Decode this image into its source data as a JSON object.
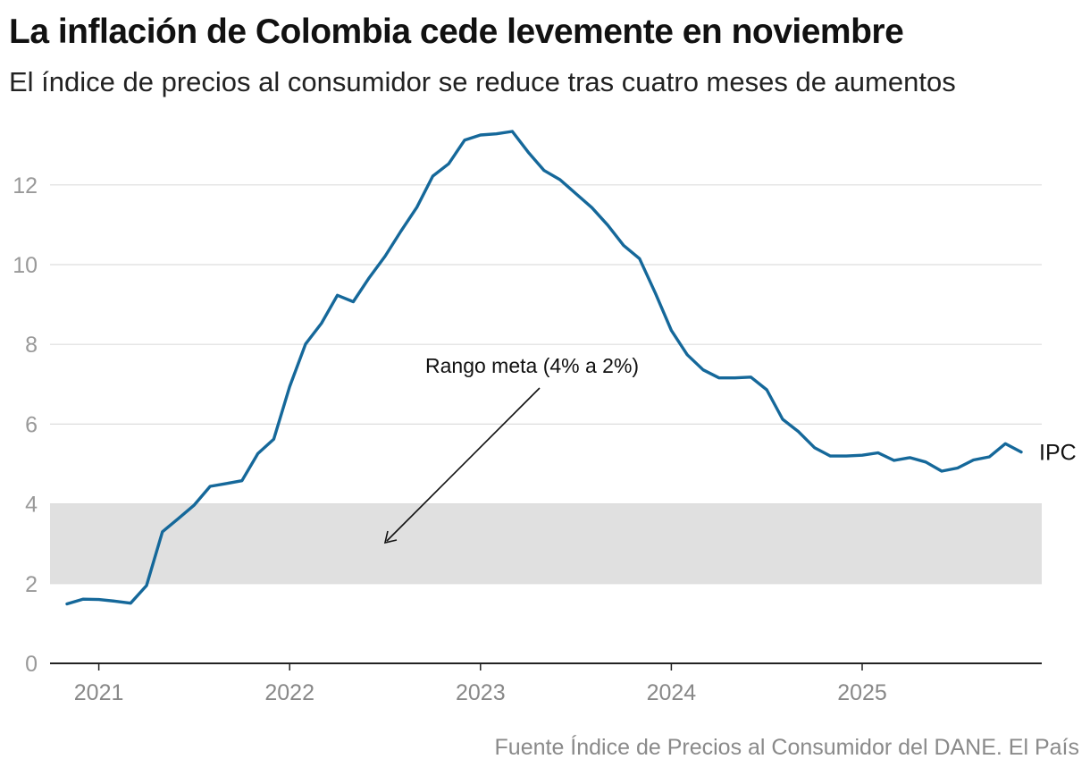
{
  "title": "La inflación de Colombia cede levemente en noviembre",
  "subtitle": "El índice de precios al consumidor se reduce tras cuatro meses de aumentos",
  "source": "Fuente Índice de Precios al Consumidor del DANE. El País",
  "colors": {
    "line": "#15689a",
    "band": "#e0e0e0",
    "grid": "#dddddd",
    "axis": "#222222"
  },
  "chart_data": {
    "type": "line",
    "title": "La inflación de Colombia cede levemente en noviembre",
    "xlabel": "",
    "ylabel": "",
    "ylim": [
      0,
      14
    ],
    "yticks": [
      0,
      2,
      4,
      6,
      8,
      10,
      12
    ],
    "xticks": [
      "2021",
      "2022",
      "2023",
      "2024",
      "2025"
    ],
    "grid": true,
    "band": {
      "label": "Rango meta (4% a 2%)",
      "from": 2,
      "to": 4
    },
    "series": [
      {
        "name": "IPC",
        "x": [
          "2020-11",
          "2020-12",
          "2021-01",
          "2021-02",
          "2021-03",
          "2021-04",
          "2021-05",
          "2021-06",
          "2021-07",
          "2021-08",
          "2021-09",
          "2021-10",
          "2021-11",
          "2021-12",
          "2022-01",
          "2022-02",
          "2022-03",
          "2022-04",
          "2022-05",
          "2022-06",
          "2022-07",
          "2022-08",
          "2022-09",
          "2022-10",
          "2022-11",
          "2022-12",
          "2023-01",
          "2023-02",
          "2023-03",
          "2023-04",
          "2023-05",
          "2023-06",
          "2023-07",
          "2023-08",
          "2023-09",
          "2023-10",
          "2023-11",
          "2023-12",
          "2024-01",
          "2024-02",
          "2024-03",
          "2024-04",
          "2024-05",
          "2024-06",
          "2024-07",
          "2024-08",
          "2024-09",
          "2024-10",
          "2024-11",
          "2024-12",
          "2025-01",
          "2025-02",
          "2025-03",
          "2025-04",
          "2025-05",
          "2025-06",
          "2025-07",
          "2025-08",
          "2025-09",
          "2025-10",
          "2025-11"
        ],
        "values": [
          1.49,
          1.61,
          1.6,
          1.56,
          1.51,
          1.95,
          3.3,
          3.63,
          3.97,
          4.44,
          4.51,
          4.58,
          5.26,
          5.62,
          6.94,
          8.01,
          8.53,
          9.23,
          9.07,
          9.67,
          10.21,
          10.84,
          11.44,
          12.22,
          12.53,
          13.12,
          13.25,
          13.28,
          13.34,
          12.82,
          12.36,
          12.13,
          11.78,
          11.43,
          10.99,
          10.48,
          10.15,
          9.28,
          8.35,
          7.74,
          7.36,
          7.16,
          7.16,
          7.18,
          6.86,
          6.12,
          5.81,
          5.41,
          5.2,
          5.2,
          5.22,
          5.28,
          5.09,
          5.16,
          5.05,
          4.82,
          4.9,
          5.1,
          5.18,
          5.51,
          5.3
        ]
      }
    ]
  }
}
